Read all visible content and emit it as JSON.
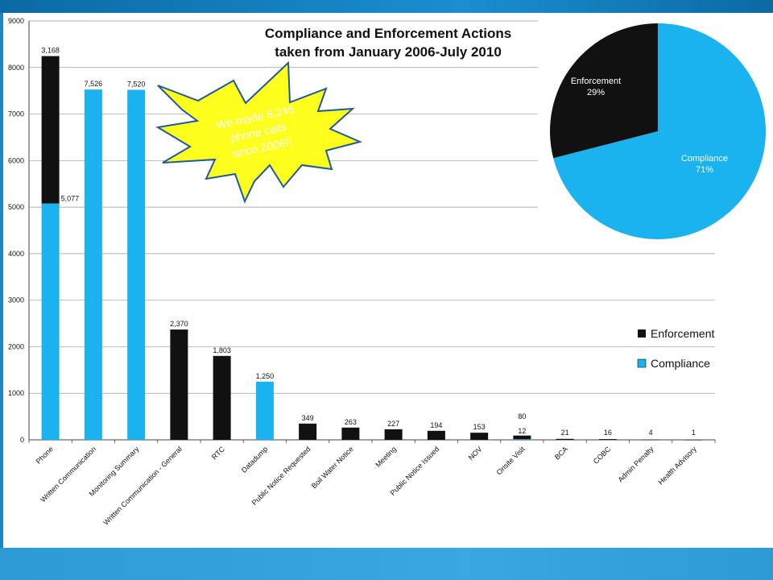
{
  "chart_data": [
    {
      "type": "bar",
      "stacked": true,
      "title_line1": "Compliance and Enforcement Actions",
      "title_line2": "taken from January 2006-July 2010",
      "categories": [
        "Phone",
        "Written Communication",
        "Monitoring Summary",
        "Written Communication - General",
        "RTC",
        "Datadump",
        "Public Notice Requested",
        "Boil Water Notice",
        "Meeting",
        "Public Notice Issued",
        "NOV",
        "Onsite Visit",
        "BCA",
        "COBC",
        "Admin Penalty",
        "Health Advisory"
      ],
      "series": [
        {
          "name": "Compliance",
          "color": "#1ab2ef",
          "values": [
            5077,
            7526,
            7520,
            0,
            0,
            1250,
            0,
            0,
            0,
            0,
            0,
            12,
            0,
            0,
            0,
            0
          ]
        },
        {
          "name": "Enforcement",
          "color": "#111111",
          "values": [
            3168,
            0,
            0,
            2370,
            1803,
            0,
            349,
            263,
            227,
            194,
            153,
            80,
            21,
            16,
            4,
            1
          ]
        }
      ],
      "bar_labels": [
        {
          "index": 0,
          "series": "Enforcement",
          "text": "3,168"
        },
        {
          "index": 0,
          "series": "Compliance",
          "text": "5,077"
        },
        {
          "index": 1,
          "series": "Compliance",
          "text": "7,526"
        },
        {
          "index": 2,
          "series": "Compliance",
          "text": "7,520"
        },
        {
          "index": 3,
          "series": "Enforcement",
          "text": "2,370"
        },
        {
          "index": 4,
          "series": "Enforcement",
          "text": "1,803"
        },
        {
          "index": 5,
          "series": "Compliance",
          "text": "1,250"
        },
        {
          "index": 6,
          "series": "Enforcement",
          "text": "349"
        },
        {
          "index": 7,
          "series": "Enforcement",
          "text": "263"
        },
        {
          "index": 8,
          "series": "Enforcement",
          "text": "227"
        },
        {
          "index": 9,
          "series": "Enforcement",
          "text": "194"
        },
        {
          "index": 10,
          "series": "Enforcement",
          "text": "153"
        },
        {
          "index": 11,
          "series": "Compliance",
          "text": "12"
        },
        {
          "index": 11,
          "series": "Enforcement",
          "text": "80"
        },
        {
          "index": 12,
          "series": "Enforcement",
          "text": "21"
        },
        {
          "index": 13,
          "series": "Enforcement",
          "text": "16"
        },
        {
          "index": 14,
          "series": "Enforcement",
          "text": "4"
        },
        {
          "index": 15,
          "series": "Enforcement",
          "text": "1"
        }
      ],
      "ylim": [
        0,
        9000
      ],
      "yticks": [
        0,
        1000,
        2000,
        3000,
        4000,
        5000,
        6000,
        7000,
        8000,
        9000
      ],
      "grid": true,
      "legend_position": "right",
      "legend": [
        {
          "name": "Enforcement",
          "color": "#111111"
        },
        {
          "name": "Compliance",
          "color": "#1ab2ef"
        }
      ]
    },
    {
      "type": "pie",
      "slices": [
        {
          "name": "Enforcement",
          "value": 29,
          "label": "29%",
          "color": "#111111"
        },
        {
          "name": "Compliance",
          "value": 71,
          "label": "71%",
          "color": "#1ab2ef"
        }
      ]
    }
  ],
  "annotation": {
    "lines": [
      "We made 8,245",
      "phone calls",
      "since 2006!!"
    ]
  }
}
